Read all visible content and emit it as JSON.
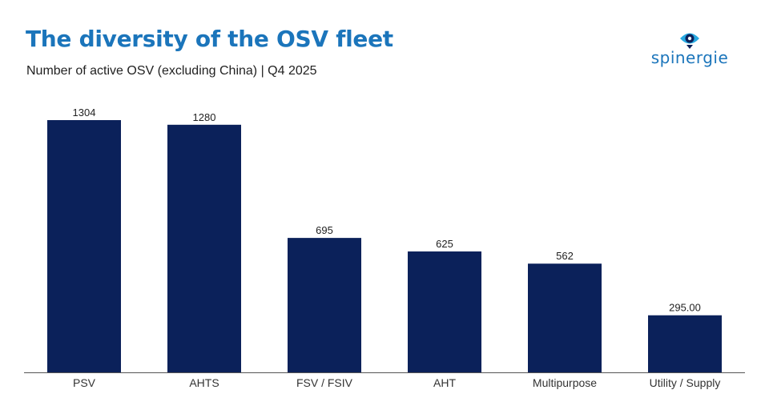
{
  "header": {
    "title": "The diversity of the OSV fleet",
    "subtitle": "Number of active OSV (excluding China) | Q4 2025"
  },
  "logo": {
    "text": "spinergie",
    "icon": "spinergie-eye-logo-icon"
  },
  "colors": {
    "title": "#1b75bb",
    "bar": "#0b215a",
    "axis": "#555555",
    "logo_light": "#27a9e1",
    "logo_dark": "#0b215a"
  },
  "chart_data": {
    "type": "bar",
    "categories": [
      "PSV",
      "AHTS",
      "FSV / FSIV",
      "AHT",
      "Multipurpose",
      "Utility / Supply"
    ],
    "values": [
      1304,
      1280,
      695,
      625,
      562,
      295
    ],
    "data_labels": [
      "1304",
      "1280",
      "695",
      "625",
      "562",
      "295.00"
    ],
    "title": "The diversity of the OSV fleet",
    "subtitle": "Number of active OSV (excluding China) | Q4 2025",
    "xlabel": "",
    "ylabel": "",
    "ylim": [
      0,
      1304
    ],
    "grid": false,
    "legend": "none"
  }
}
